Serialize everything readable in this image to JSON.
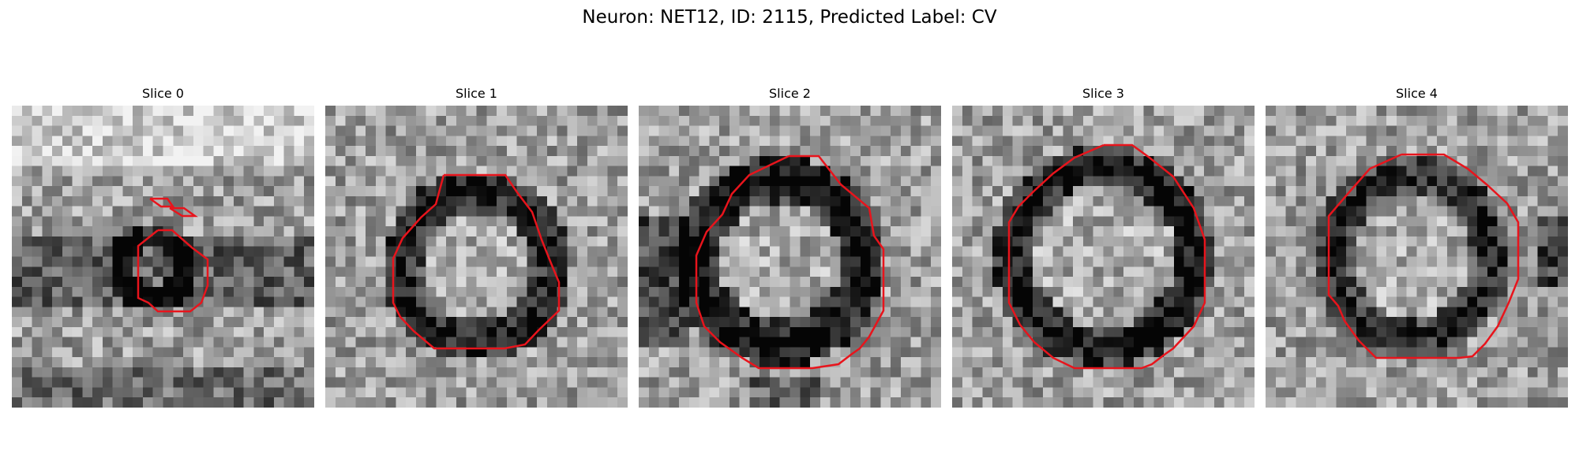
{
  "figure": {
    "title": "Neuron: NET12, ID: 2115, Predicted Label: CV",
    "contour_color": "#e8141c"
  },
  "panels": [
    {
      "title": "Slice 0"
    },
    {
      "title": "Slice 1"
    },
    {
      "title": "Slice 2"
    },
    {
      "title": "Slice 3"
    },
    {
      "title": "Slice 4"
    }
  ]
}
